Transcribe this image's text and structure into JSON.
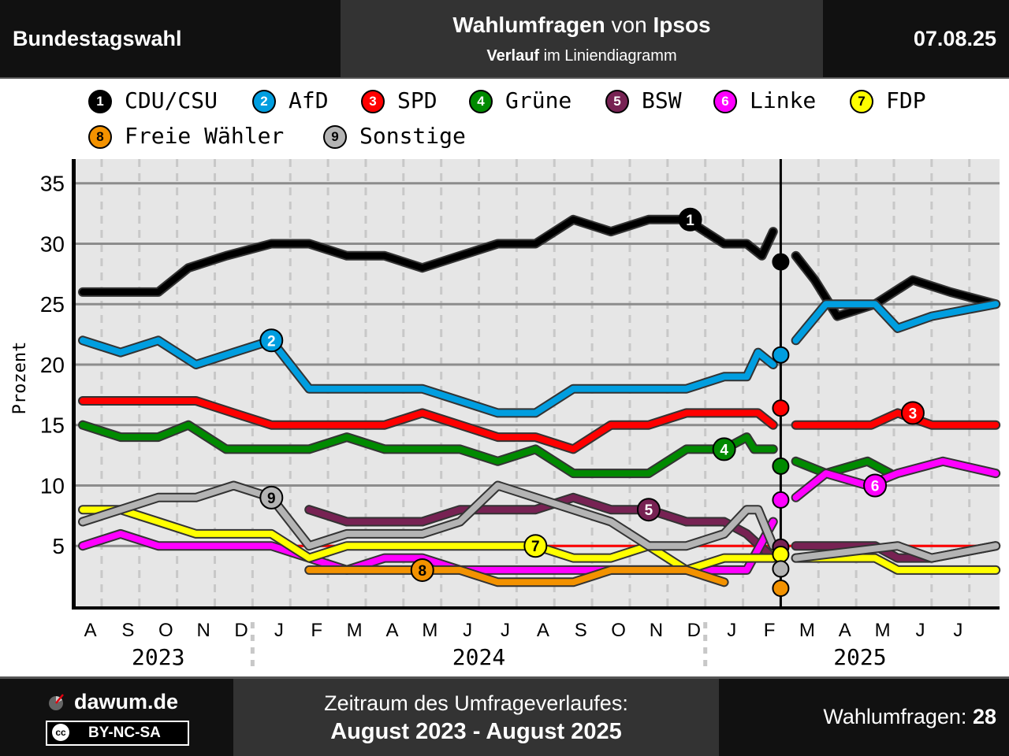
{
  "header": {
    "left": "Bundestagswahl",
    "title_bold1": "Wahlumfragen",
    "title_mid": " von ",
    "title_bold2": "Ipsos",
    "sub_bold": "Verlauf",
    "sub_rest": " im Liniendiagramm",
    "date": "07.08.25"
  },
  "footer": {
    "brand": "dawum.de",
    "license": "BY-NC-SA",
    "license_cc": "cc",
    "period_label": "Zeitraum des Umfrageverlaufes:",
    "period": "August 2023 - August 2025",
    "count_label": "Wahlumfragen: ",
    "count": "28"
  },
  "chart_data": {
    "type": "line",
    "ylabel": "Prozent",
    "ylim": [
      0,
      37
    ],
    "yticks": [
      5,
      10,
      15,
      20,
      25,
      30,
      35
    ],
    "xlim": [
      0,
      24.3
    ],
    "month_labels": [
      "A",
      "S",
      "O",
      "N",
      "D",
      "J",
      "F",
      "M",
      "A",
      "M",
      "J",
      "J",
      "A",
      "S",
      "O",
      "N",
      "D",
      "J",
      "F",
      "M",
      "A",
      "M",
      "J",
      "J"
    ],
    "year_labels": [
      {
        "label": "2023",
        "x": 2.0
      },
      {
        "label": "2024",
        "x": 10.5
      },
      {
        "label": "2025",
        "x": 20.6
      }
    ],
    "year_separators": [
      4.5,
      16.5
    ],
    "election_x": 18.5,
    "hline": {
      "y": 5,
      "from": 5.0,
      "to": 24.3,
      "color": "#ff0000"
    },
    "series": [
      {
        "name": "CDU/CSU",
        "num": "1",
        "color": "#000000",
        "textColor": "#ffffff",
        "before": [
          [
            0,
            26
          ],
          [
            1,
            26
          ],
          [
            2,
            26
          ],
          [
            2.8,
            28
          ],
          [
            3.8,
            29
          ],
          [
            5,
            30
          ],
          [
            6,
            30
          ],
          [
            7,
            29
          ],
          [
            8,
            29
          ],
          [
            9,
            28
          ],
          [
            10,
            29
          ],
          [
            11,
            30
          ],
          [
            12,
            30
          ],
          [
            13,
            32
          ],
          [
            14,
            31
          ],
          [
            15,
            32
          ],
          [
            16,
            32
          ],
          [
            17,
            30
          ],
          [
            17.6,
            30
          ],
          [
            18,
            29
          ],
          [
            18.3,
            31
          ]
        ],
        "after": [
          [
            18.9,
            29
          ],
          [
            19.4,
            27
          ],
          [
            20.0,
            24
          ],
          [
            21,
            25
          ],
          [
            22,
            27
          ],
          [
            23,
            26
          ],
          [
            24.2,
            25
          ]
        ],
        "badge": [
          16.1,
          32
        ],
        "election": 28.5
      },
      {
        "name": "AfD",
        "num": "2",
        "color": "#009ee0",
        "textColor": "#ffffff",
        "before": [
          [
            0,
            22
          ],
          [
            1,
            21
          ],
          [
            2,
            22
          ],
          [
            3,
            20
          ],
          [
            4,
            21
          ],
          [
            5,
            22
          ],
          [
            6,
            18
          ],
          [
            7,
            18
          ],
          [
            8,
            18
          ],
          [
            9,
            18
          ],
          [
            10,
            17
          ],
          [
            11,
            16
          ],
          [
            12,
            16
          ],
          [
            13,
            18
          ],
          [
            14,
            18
          ],
          [
            15,
            18
          ],
          [
            16,
            18
          ],
          [
            17,
            19
          ],
          [
            17.6,
            19
          ],
          [
            17.9,
            21
          ],
          [
            18.3,
            20
          ]
        ],
        "after": [
          [
            18.9,
            22
          ],
          [
            19.7,
            25
          ],
          [
            21,
            25
          ],
          [
            21.6,
            23
          ],
          [
            22.5,
            24
          ],
          [
            24.2,
            25
          ]
        ],
        "badge": [
          5.0,
          22
        ],
        "election": 20.8
      },
      {
        "name": "SPD",
        "num": "3",
        "color": "#ff0000",
        "textColor": "#ffffff",
        "before": [
          [
            0,
            17
          ],
          [
            3,
            17
          ],
          [
            4,
            16
          ],
          [
            5,
            15
          ],
          [
            6,
            15
          ],
          [
            7,
            15
          ],
          [
            8,
            15
          ],
          [
            9,
            16
          ],
          [
            10,
            15
          ],
          [
            11,
            14
          ],
          [
            12,
            14
          ],
          [
            13,
            13
          ],
          [
            14,
            15
          ],
          [
            15,
            15
          ],
          [
            16,
            16
          ],
          [
            17,
            16
          ],
          [
            17.9,
            16
          ],
          [
            18.3,
            15
          ]
        ],
        "after": [
          [
            18.9,
            15
          ],
          [
            20.9,
            15
          ],
          [
            21.6,
            16
          ],
          [
            22.5,
            15
          ],
          [
            24.2,
            15
          ]
        ],
        "badge": [
          22.0,
          16
        ],
        "election": 16.4
      },
      {
        "name": "Grüne",
        "num": "4",
        "color": "#008a00",
        "textColor": "#ffffff",
        "before": [
          [
            0,
            15
          ],
          [
            1,
            14
          ],
          [
            2,
            14
          ],
          [
            2.8,
            15
          ],
          [
            3.8,
            13
          ],
          [
            5,
            13
          ],
          [
            6,
            13
          ],
          [
            7,
            14
          ],
          [
            8,
            13
          ],
          [
            9,
            13
          ],
          [
            10,
            13
          ],
          [
            11,
            12
          ],
          [
            12,
            13
          ],
          [
            13,
            11
          ],
          [
            14,
            11
          ],
          [
            15,
            11
          ],
          [
            16,
            13
          ],
          [
            17,
            13
          ],
          [
            17.6,
            14
          ],
          [
            17.8,
            13
          ],
          [
            18.3,
            13
          ]
        ],
        "after": [
          [
            18.9,
            12
          ],
          [
            19.7,
            11
          ],
          [
            20.8,
            12
          ],
          [
            21.4,
            11
          ]
        ],
        "badge": [
          17.0,
          13
        ],
        "election": 11.6
      },
      {
        "name": "BSW",
        "num": "5",
        "color": "#772253",
        "textColor": "#ffffff",
        "before": [
          [
            6,
            8
          ],
          [
            7,
            7
          ],
          [
            8,
            7
          ],
          [
            9,
            7
          ],
          [
            10,
            8
          ],
          [
            11,
            8
          ],
          [
            12,
            8
          ],
          [
            13,
            9
          ],
          [
            14,
            8
          ],
          [
            15,
            8
          ],
          [
            16,
            7
          ],
          [
            17,
            7
          ],
          [
            17.6,
            6
          ],
          [
            18.3,
            4
          ]
        ],
        "after": [
          [
            18.9,
            5
          ],
          [
            21,
            5
          ],
          [
            21.6,
            4
          ],
          [
            22.5,
            4
          ],
          [
            24.2,
            5
          ]
        ],
        "badge": [
          15.0,
          8
        ],
        "election": 4.9
      },
      {
        "name": "Linke",
        "num": "6",
        "color": "#ff00ff",
        "textColor": "#ffffff",
        "before": [
          [
            0,
            5
          ],
          [
            1,
            6
          ],
          [
            2,
            5
          ],
          [
            3,
            5
          ],
          [
            4,
            5
          ],
          [
            5,
            5
          ],
          [
            6,
            4
          ],
          [
            7,
            3
          ],
          [
            8,
            4
          ],
          [
            9,
            4
          ],
          [
            10,
            3
          ],
          [
            11,
            3
          ],
          [
            12,
            3
          ],
          [
            13,
            3
          ],
          [
            14,
            3
          ],
          [
            15,
            3
          ],
          [
            16,
            3
          ],
          [
            17,
            3
          ],
          [
            17.6,
            3
          ],
          [
            18.3,
            7
          ]
        ],
        "after": [
          [
            18.9,
            9
          ],
          [
            19.7,
            11
          ],
          [
            20.8,
            10
          ],
          [
            21.6,
            11
          ],
          [
            22.8,
            12
          ],
          [
            24.2,
            11
          ]
        ],
        "badge": [
          21.0,
          10
        ],
        "election": 8.8
      },
      {
        "name": "FDP",
        "num": "7",
        "color": "#ffff00",
        "textColor": "#000000",
        "before": [
          [
            0,
            8
          ],
          [
            1,
            8
          ],
          [
            2,
            7
          ],
          [
            3,
            6
          ],
          [
            4,
            6
          ],
          [
            5,
            6
          ],
          [
            6,
            4
          ],
          [
            7,
            5
          ],
          [
            8,
            5
          ],
          [
            9,
            5
          ],
          [
            10,
            5
          ],
          [
            11,
            5
          ],
          [
            12,
            5
          ],
          [
            13,
            4
          ],
          [
            14,
            4
          ],
          [
            15,
            5
          ],
          [
            16,
            3
          ],
          [
            17,
            4
          ],
          [
            17.6,
            4
          ],
          [
            18.3,
            4
          ]
        ],
        "after": [
          [
            18.9,
            4
          ],
          [
            21,
            4
          ],
          [
            21.6,
            3
          ],
          [
            24.2,
            3
          ]
        ],
        "badge": [
          12.0,
          5
        ],
        "election": 4.3
      },
      {
        "name": "Freie Wähler",
        "num": "8",
        "color": "#f39200",
        "textColor": "#000000",
        "before": [
          [
            6,
            3
          ],
          [
            7,
            3
          ],
          [
            8,
            3
          ],
          [
            9,
            3
          ],
          [
            10,
            3
          ],
          [
            11,
            2
          ],
          [
            12,
            2
          ],
          [
            13,
            2
          ],
          [
            14,
            3
          ],
          [
            15,
            3
          ],
          [
            16,
            3
          ],
          [
            17,
            2
          ]
        ],
        "after": [],
        "badge": [
          9.0,
          3
        ],
        "election": 1.5
      },
      {
        "name": "Sonstige",
        "num": "9",
        "color": "#b4b4b4",
        "textColor": "#000000",
        "before": [
          [
            0,
            7
          ],
          [
            1,
            8
          ],
          [
            2,
            9
          ],
          [
            3,
            9
          ],
          [
            4,
            10
          ],
          [
            5,
            9
          ],
          [
            6,
            5
          ],
          [
            7,
            6
          ],
          [
            8,
            6
          ],
          [
            9,
            6
          ],
          [
            10,
            7
          ],
          [
            11,
            10
          ],
          [
            12,
            9
          ],
          [
            13,
            8
          ],
          [
            14,
            7
          ],
          [
            15,
            5
          ],
          [
            16,
            5
          ],
          [
            17,
            6
          ],
          [
            17.6,
            8
          ],
          [
            17.9,
            8
          ],
          [
            18.3,
            5
          ]
        ],
        "after": [
          [
            18.9,
            4
          ],
          [
            21.6,
            5
          ],
          [
            22.5,
            4
          ],
          [
            24.2,
            5
          ]
        ],
        "badge": [
          5.0,
          9
        ],
        "election": 3.1
      }
    ]
  }
}
